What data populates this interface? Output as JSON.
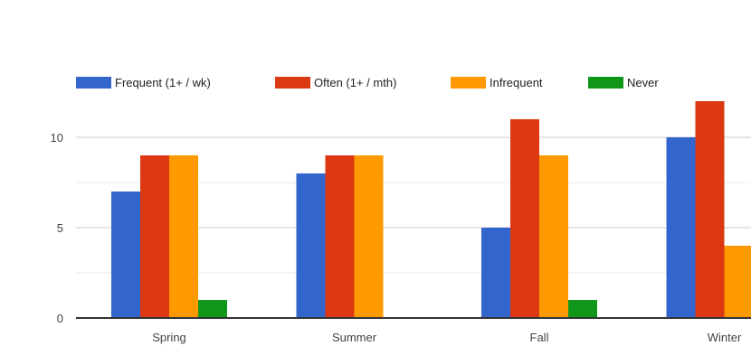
{
  "chart_data": {
    "type": "bar",
    "title": "",
    "xlabel": "",
    "ylabel": "",
    "categories": [
      "Spring",
      "Summer",
      "Fall",
      "Winter"
    ],
    "series": [
      {
        "name": "Frequent (1+ / wk)",
        "color": "#3366cc",
        "values": [
          7,
          8,
          5,
          10
        ]
      },
      {
        "name": "Often (1+ / mth)",
        "color": "#dc3912",
        "values": [
          9,
          9,
          11,
          12
        ]
      },
      {
        "name": "Infrequent",
        "color": "#ff9900",
        "values": [
          9,
          9,
          9,
          4
        ]
      },
      {
        "name": "Never",
        "color": "#109618",
        "values": [
          1,
          0,
          1,
          0
        ]
      }
    ],
    "ylim": [
      0,
      12
    ],
    "yticks": [
      0,
      5,
      10
    ],
    "grid": true,
    "legend_position": "top"
  }
}
